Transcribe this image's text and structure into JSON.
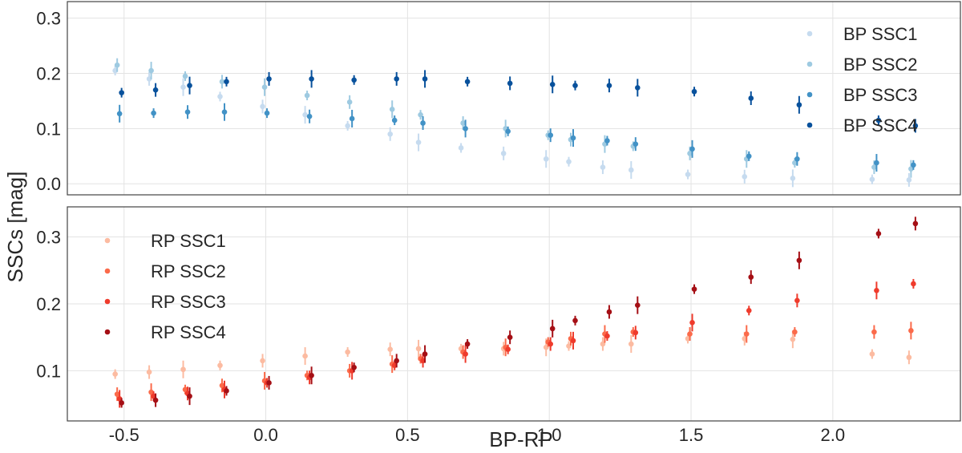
{
  "figure": {
    "xlabel": "BP-RP",
    "ylabel": "SSCs [mag]"
  },
  "chart_data": [
    {
      "type": "scatter",
      "panel": "top",
      "xlim": [
        -0.7,
        2.45
      ],
      "ylim": [
        -0.02,
        0.33
      ],
      "xticks": [
        "-0.5",
        "0.0",
        "0.5",
        "1.0",
        "1.5",
        "2.0"
      ],
      "xtick_values": [
        -0.5,
        0.0,
        0.5,
        1.0,
        1.5,
        2.0
      ],
      "yticks": [
        "0.0",
        "0.1",
        "0.2",
        "0.3"
      ],
      "ytick_values": [
        0.0,
        0.1,
        0.2,
        0.3
      ],
      "grid": true,
      "legend_position": "top-right",
      "has_error_bars": true,
      "series": [
        {
          "name": "BP SSC1",
          "color": "#c6dbef",
          "points": [
            [
              -0.52,
              0.205
            ],
            [
              -0.4,
              0.19
            ],
            [
              -0.28,
              0.175
            ],
            [
              -0.15,
              0.158
            ],
            [
              0.0,
              0.14
            ],
            [
              0.15,
              0.125
            ],
            [
              0.3,
              0.105
            ],
            [
              0.45,
              0.09
            ],
            [
              0.55,
              0.075
            ],
            [
              0.7,
              0.065
            ],
            [
              0.85,
              0.055
            ],
            [
              1.0,
              0.045
            ],
            [
              1.08,
              0.04
            ],
            [
              1.2,
              0.03
            ],
            [
              1.3,
              0.025
            ],
            [
              1.5,
              0.017
            ],
            [
              1.7,
              0.013
            ],
            [
              1.87,
              0.01
            ],
            [
              2.15,
              0.008
            ],
            [
              2.28,
              0.007
            ]
          ]
        },
        {
          "name": "BP SSC2",
          "color": "#9ecae1",
          "points": [
            [
              -0.52,
              0.215
            ],
            [
              -0.4,
              0.205
            ],
            [
              -0.28,
              0.195
            ],
            [
              -0.15,
              0.185
            ],
            [
              0.0,
              0.175
            ],
            [
              0.15,
              0.16
            ],
            [
              0.3,
              0.148
            ],
            [
              0.45,
              0.135
            ],
            [
              0.55,
              0.125
            ],
            [
              0.7,
              0.11
            ],
            [
              0.85,
              0.1
            ],
            [
              1.0,
              0.088
            ],
            [
              1.08,
              0.08
            ],
            [
              1.2,
              0.072
            ],
            [
              1.3,
              0.068
            ],
            [
              1.5,
              0.055
            ],
            [
              1.7,
              0.045
            ],
            [
              1.87,
              0.038
            ],
            [
              2.15,
              0.03
            ],
            [
              2.28,
              0.027
            ]
          ]
        },
        {
          "name": "BP SSC3",
          "color": "#4292c6",
          "points": [
            [
              -0.52,
              0.127
            ],
            [
              -0.4,
              0.128
            ],
            [
              -0.28,
              0.13
            ],
            [
              -0.15,
              0.13
            ],
            [
              0.0,
              0.128
            ],
            [
              0.15,
              0.122
            ],
            [
              0.3,
              0.118
            ],
            [
              0.45,
              0.115
            ],
            [
              0.55,
              0.11
            ],
            [
              0.7,
              0.1
            ],
            [
              0.85,
              0.095
            ],
            [
              1.0,
              0.088
            ],
            [
              1.08,
              0.083
            ],
            [
              1.2,
              0.078
            ],
            [
              1.3,
              0.072
            ],
            [
              1.5,
              0.063
            ],
            [
              1.7,
              0.05
            ],
            [
              1.87,
              0.045
            ],
            [
              2.15,
              0.038
            ],
            [
              2.28,
              0.034
            ]
          ]
        },
        {
          "name": "BP SSC4",
          "color": "#08519c",
          "points": [
            [
              -0.52,
              0.165
            ],
            [
              -0.4,
              0.17
            ],
            [
              -0.28,
              0.178
            ],
            [
              -0.15,
              0.185
            ],
            [
              0.0,
              0.19
            ],
            [
              0.15,
              0.19
            ],
            [
              0.3,
              0.188
            ],
            [
              0.45,
              0.19
            ],
            [
              0.55,
              0.19
            ],
            [
              0.7,
              0.185
            ],
            [
              0.85,
              0.182
            ],
            [
              1.0,
              0.18
            ],
            [
              1.08,
              0.178
            ],
            [
              1.2,
              0.178
            ],
            [
              1.3,
              0.174
            ],
            [
              1.5,
              0.167
            ],
            [
              1.7,
              0.155
            ],
            [
              1.87,
              0.143
            ],
            [
              2.15,
              0.115
            ],
            [
              2.28,
              0.105
            ]
          ]
        }
      ]
    },
    {
      "type": "scatter",
      "panel": "bottom",
      "xlim": [
        -0.7,
        2.45
      ],
      "ylim": [
        0.025,
        0.345
      ],
      "xticks": [
        "-0.5",
        "0.0",
        "0.5",
        "1.0",
        "1.5",
        "2.0"
      ],
      "xtick_values": [
        -0.5,
        0.0,
        0.5,
        1.0,
        1.5,
        2.0
      ],
      "yticks": [
        "0.1",
        "0.2",
        "0.3"
      ],
      "ytick_values": [
        0.1,
        0.2,
        0.3
      ],
      "grid": true,
      "legend_position": "top-left",
      "has_error_bars": true,
      "series": [
        {
          "name": "RP SSC1",
          "color": "#fcbba1",
          "points": [
            [
              -0.52,
              0.095
            ],
            [
              -0.4,
              0.098
            ],
            [
              -0.28,
              0.102
            ],
            [
              -0.15,
              0.108
            ],
            [
              0.0,
              0.115
            ],
            [
              0.15,
              0.122
            ],
            [
              0.3,
              0.128
            ],
            [
              0.45,
              0.132
            ],
            [
              0.55,
              0.133
            ],
            [
              0.7,
              0.133
            ],
            [
              0.85,
              0.133
            ],
            [
              1.0,
              0.135
            ],
            [
              1.08,
              0.137
            ],
            [
              1.2,
              0.14
            ],
            [
              1.3,
              0.14
            ],
            [
              1.5,
              0.148
            ],
            [
              1.7,
              0.148
            ],
            [
              1.87,
              0.147
            ],
            [
              2.15,
              0.125
            ],
            [
              2.28,
              0.12
            ]
          ]
        },
        {
          "name": "RP SSC2",
          "color": "#fb6a4a",
          "points": [
            [
              -0.52,
              0.065
            ],
            [
              -0.4,
              0.068
            ],
            [
              -0.28,
              0.072
            ],
            [
              -0.15,
              0.078
            ],
            [
              0.0,
              0.085
            ],
            [
              0.15,
              0.093
            ],
            [
              0.3,
              0.1
            ],
            [
              0.45,
              0.11
            ],
            [
              0.55,
              0.118
            ],
            [
              0.7,
              0.128
            ],
            [
              0.85,
              0.135
            ],
            [
              1.0,
              0.143
            ],
            [
              1.08,
              0.148
            ],
            [
              1.2,
              0.155
            ],
            [
              1.3,
              0.158
            ],
            [
              1.5,
              0.155
            ],
            [
              1.7,
              0.155
            ],
            [
              1.87,
              0.158
            ],
            [
              2.15,
              0.158
            ],
            [
              2.28,
              0.16
            ]
          ]
        },
        {
          "name": "RP SSC3",
          "color": "#ef3b2c",
          "points": [
            [
              -0.52,
              0.058
            ],
            [
              -0.4,
              0.062
            ],
            [
              -0.28,
              0.066
            ],
            [
              -0.15,
              0.072
            ],
            [
              0.0,
              0.082
            ],
            [
              0.15,
              0.09
            ],
            [
              0.3,
              0.1
            ],
            [
              0.45,
              0.108
            ],
            [
              0.55,
              0.115
            ],
            [
              0.7,
              0.125
            ],
            [
              0.85,
              0.132
            ],
            [
              1.0,
              0.14
            ],
            [
              1.08,
              0.145
            ],
            [
              1.2,
              0.152
            ],
            [
              1.3,
              0.157
            ],
            [
              1.5,
              0.172
            ],
            [
              1.7,
              0.19
            ],
            [
              1.87,
              0.205
            ],
            [
              2.15,
              0.22
            ],
            [
              2.28,
              0.23
            ]
          ]
        },
        {
          "name": "RP SSC4",
          "color": "#a50f15",
          "points": [
            [
              -0.52,
              0.052
            ],
            [
              -0.4,
              0.056
            ],
            [
              -0.28,
              0.062
            ],
            [
              -0.15,
              0.07
            ],
            [
              0.0,
              0.082
            ],
            [
              0.15,
              0.093
            ],
            [
              0.3,
              0.105
            ],
            [
              0.45,
              0.115
            ],
            [
              0.55,
              0.125
            ],
            [
              0.7,
              0.14
            ],
            [
              0.85,
              0.15
            ],
            [
              1.0,
              0.163
            ],
            [
              1.08,
              0.175
            ],
            [
              1.2,
              0.188
            ],
            [
              1.3,
              0.198
            ],
            [
              1.5,
              0.222
            ],
            [
              1.7,
              0.24
            ],
            [
              1.87,
              0.265
            ],
            [
              2.15,
              0.305
            ],
            [
              2.28,
              0.32
            ]
          ]
        }
      ]
    }
  ]
}
